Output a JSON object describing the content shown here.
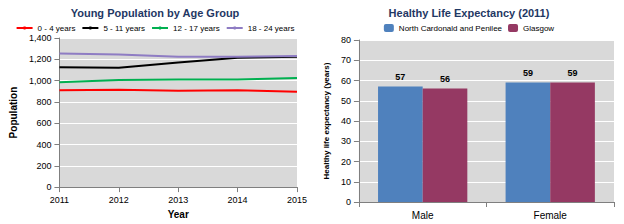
{
  "chart_data": [
    {
      "type": "line",
      "title": "Young Population by Age Group",
      "x_label": "Year",
      "y_label": "Population",
      "categories": [
        "2011",
        "2012",
        "2013",
        "2014",
        "2015"
      ],
      "series": [
        {
          "name": "0 - 4 years",
          "color": "#ff0000",
          "values": [
            910,
            915,
            905,
            910,
            895
          ]
        },
        {
          "name": "5 - 11 years",
          "color": "#000000",
          "values": [
            1125,
            1120,
            1170,
            1215,
            1225
          ]
        },
        {
          "name": "12 - 17 years",
          "color": "#00b050",
          "values": [
            985,
            1005,
            1010,
            1010,
            1025
          ]
        },
        {
          "name": "18 - 24 years",
          "color": "#8e7cc3",
          "values": [
            1255,
            1245,
            1225,
            1225,
            1230
          ]
        }
      ],
      "ylim": [
        0,
        1400
      ],
      "yticks": [
        0,
        200,
        400,
        600,
        800,
        {
          "value": 1000,
          "label": "1,000"
        },
        {
          "value": 1200,
          "label": "1,200"
        },
        {
          "value": 1400,
          "label": "1,400"
        }
      ],
      "grid": true,
      "legend": "top"
    },
    {
      "type": "bar",
      "title": "Healthy Life Expectancy (2011)",
      "y_label": "Healthy life expectancy (years)",
      "categories": [
        "Male",
        "Female"
      ],
      "series": [
        {
          "name": "North Cardonald and Penilee",
          "color": "#4f81bd",
          "values": [
            57,
            59
          ]
        },
        {
          "name": "Glasgow",
          "color": "#953963",
          "values": [
            56,
            59
          ]
        }
      ],
      "ylim": [
        0,
        80
      ],
      "yticks": [
        0,
        10,
        20,
        30,
        40,
        50,
        60,
        70,
        80
      ],
      "grid": true,
      "legend": "top",
      "data_labels": true
    }
  ]
}
